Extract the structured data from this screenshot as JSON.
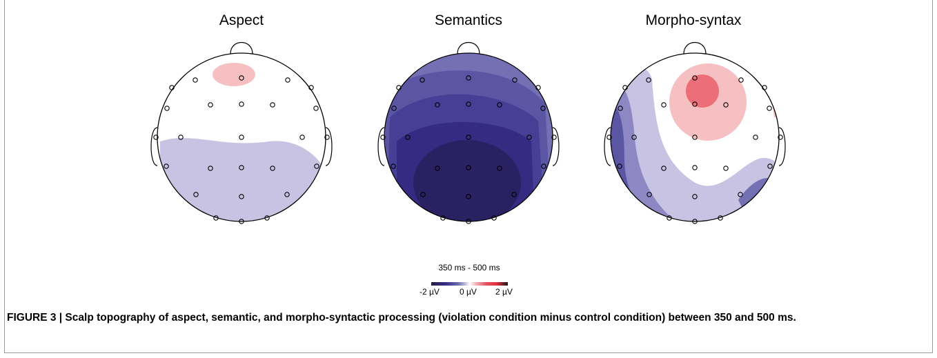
{
  "maps": [
    {
      "title": "Aspect"
    },
    {
      "title": "Semantics"
    },
    {
      "title": "Morpho-syntax"
    }
  ],
  "colorbar": {
    "time_window": "350 ms - 500 ms",
    "min_label": "-2 µV",
    "mid_label": "0 µV",
    "max_label": "2 µV",
    "colors": [
      "#241c4a",
      "#3a2f8a",
      "#6b6bb0",
      "#c6c2e0",
      "#ffffff",
      "#f3b8bc",
      "#e05060",
      "#1a1a1a"
    ]
  },
  "caption": "FIGURE 3 | Scalp topography of aspect, semantic, and morpho-syntactic processing (violation condition minus control condition) between 350 and 500 ms."
}
